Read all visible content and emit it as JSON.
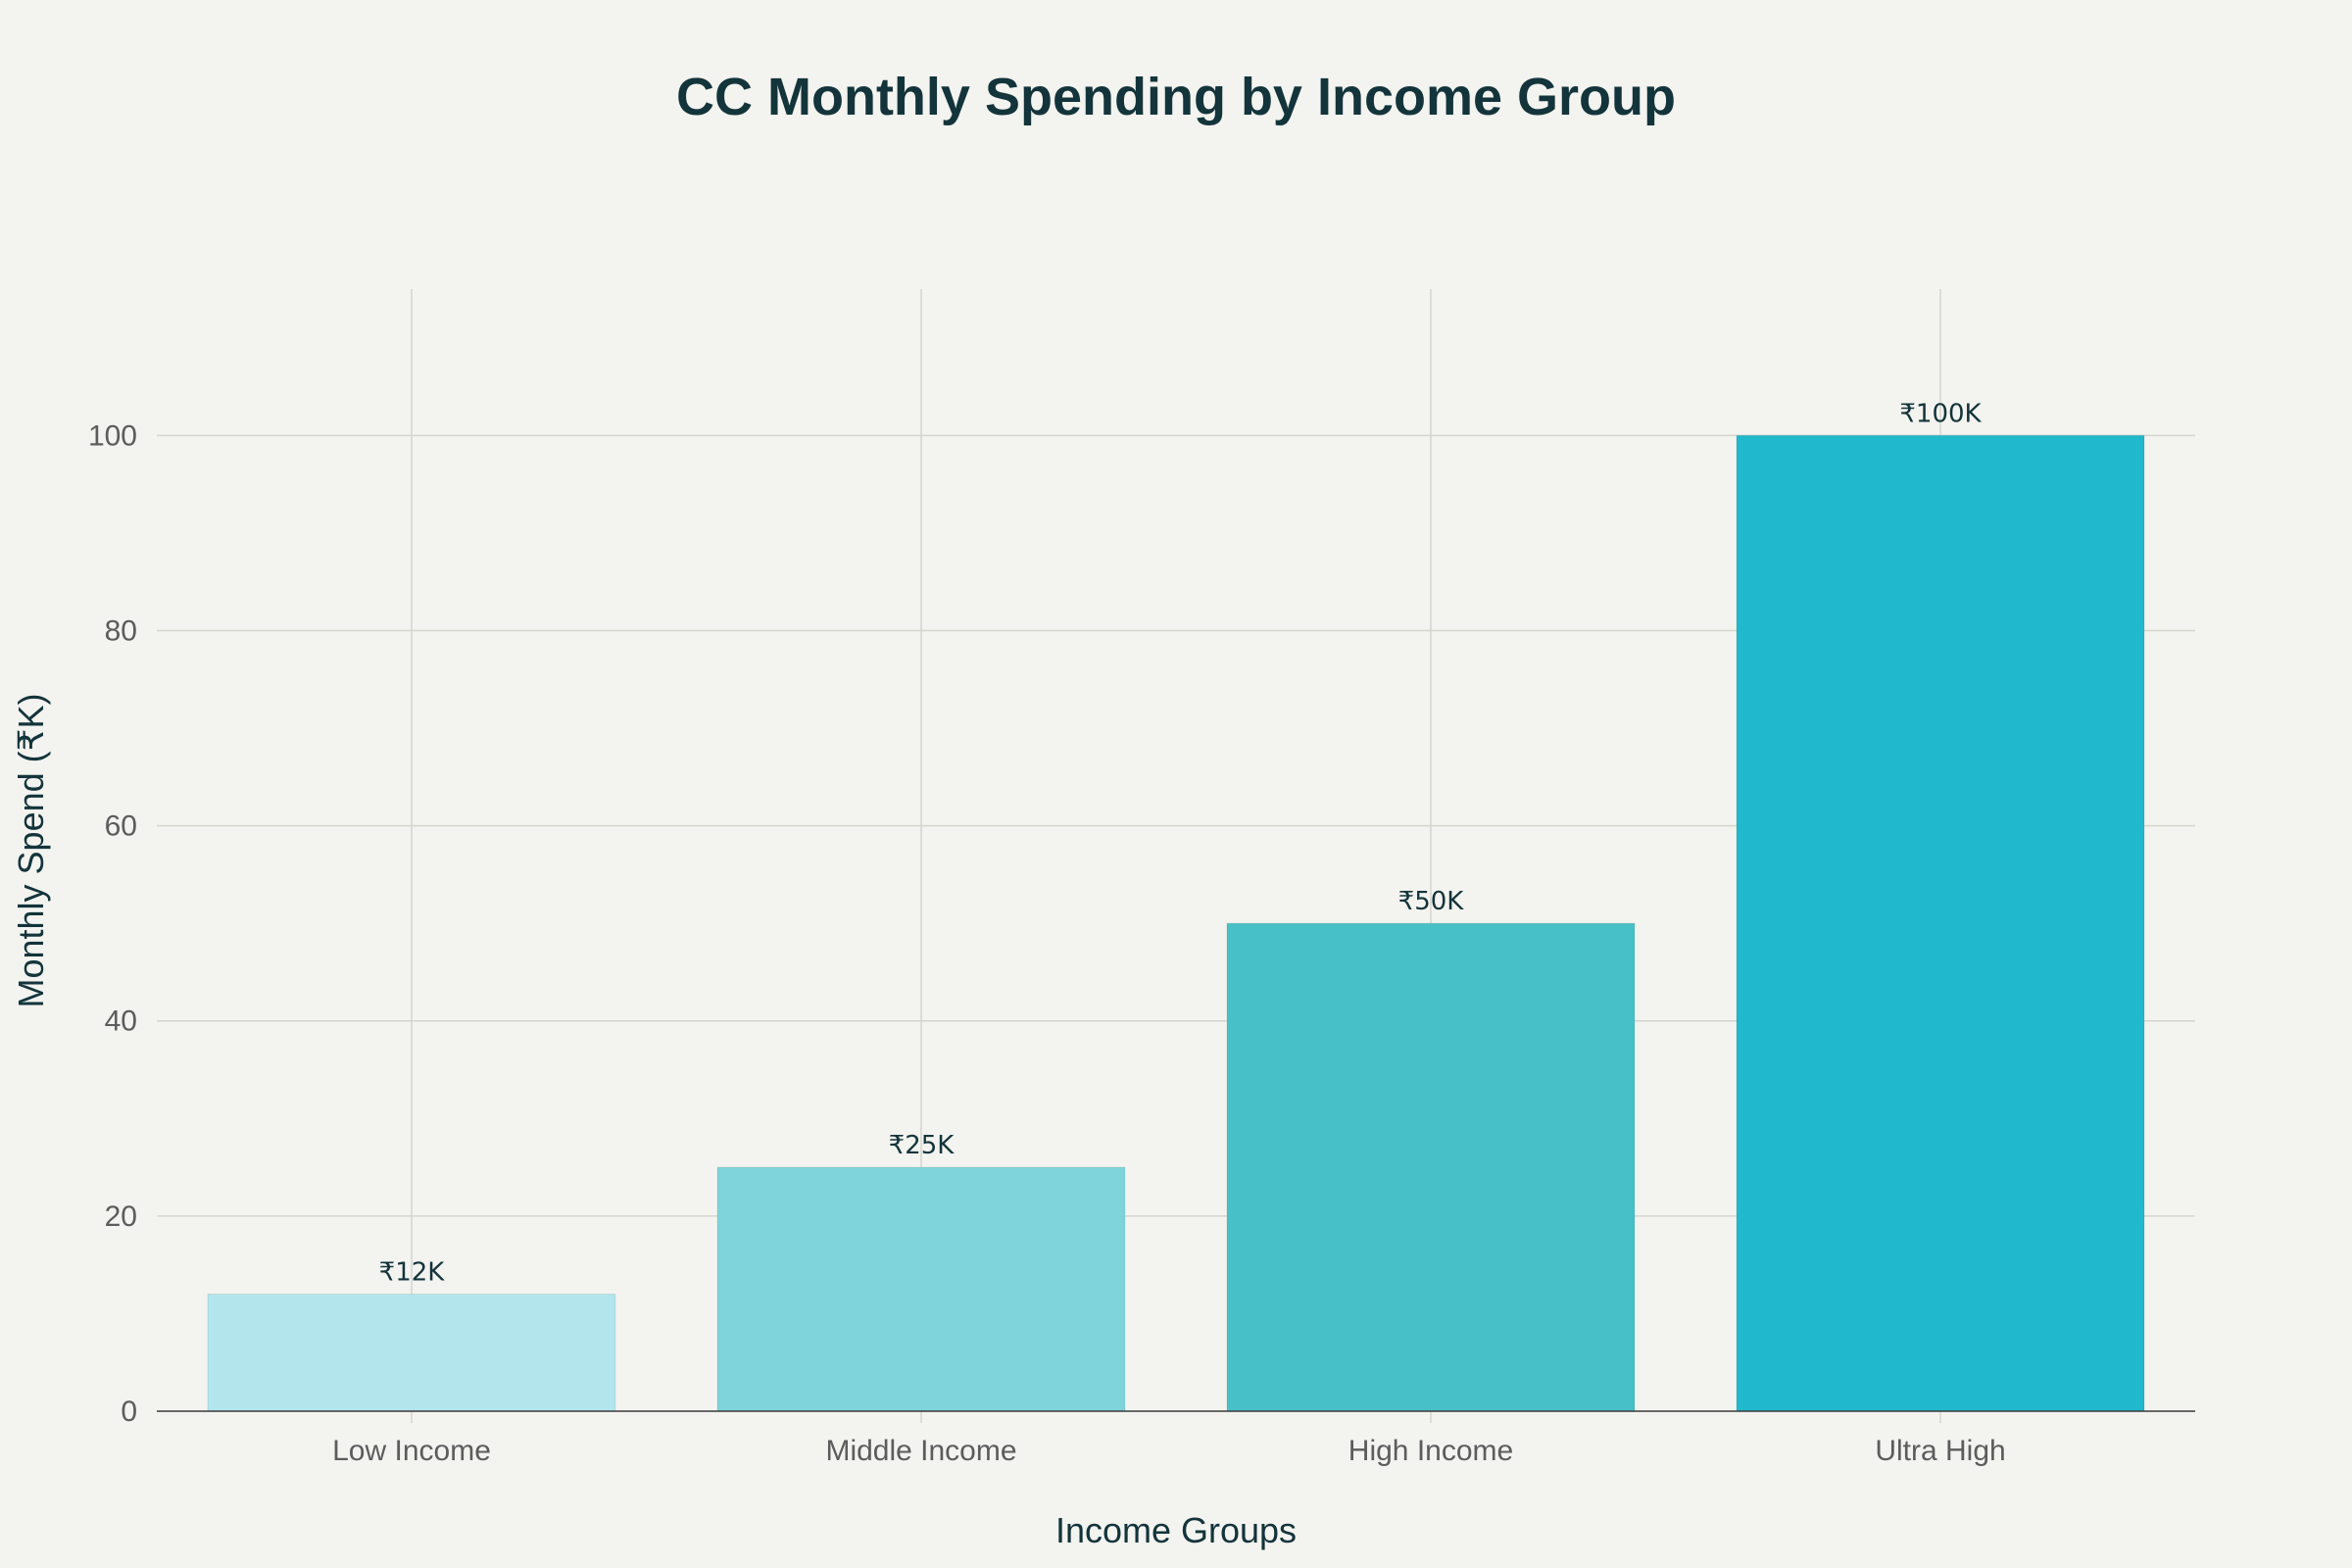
{
  "chart_data": {
    "type": "bar",
    "title": "CC Monthly Spending by Income Group",
    "xlabel": "Income Groups",
    "ylabel": "Monthly Spend (₹K)",
    "categories": [
      "Low Income",
      "Middle Income",
      "High Income",
      "Ultra High"
    ],
    "values": [
      12,
      25,
      50,
      100
    ],
    "data_labels": [
      "₹12K",
      "₹25K",
      "₹50K",
      "₹100K"
    ],
    "bar_colors": [
      "#b3e5ec",
      "#7fd3da",
      "#48c0c7",
      "#20b8cd"
    ],
    "yticks": [
      0,
      20,
      40,
      60,
      80,
      100
    ],
    "ylim": [
      0,
      115
    ],
    "grid": true,
    "legend": false
  }
}
